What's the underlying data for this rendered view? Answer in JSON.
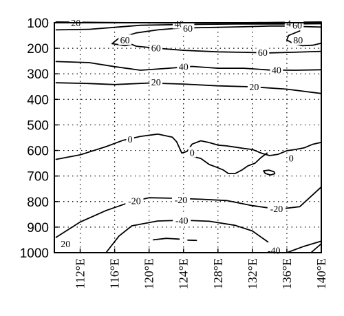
{
  "chart_data": {
    "type": "contour",
    "title": "",
    "xlabel": "",
    "ylabel": "",
    "x_ticks": [
      "112°E",
      "116°E",
      "120°E",
      "124°E",
      "128°E",
      "132°E",
      "136°E",
      "140°E"
    ],
    "y_ticks": [
      "100",
      "200",
      "300",
      "400",
      "500",
      "600",
      "700",
      "800",
      "900",
      "1000"
    ],
    "xlim": [
      109,
      140
    ],
    "ylim": [
      1000,
      100
    ],
    "grid": true,
    "contour_levels": [
      -40,
      -20,
      0,
      20,
      40,
      60,
      80
    ],
    "contours": [
      {
        "level": "20",
        "label_at": [
          111.5,
          100
        ],
        "points": [
          [
            109.2,
            97
          ],
          [
            115,
            99
          ],
          [
            122,
            101
          ],
          [
            128,
            101
          ],
          [
            134,
            99
          ],
          [
            140,
            97
          ]
        ]
      },
      {
        "level": "40",
        "label_at": [
          123.5,
          104
        ],
        "points": [
          [
            109.2,
            128
          ],
          [
            113,
            126
          ],
          [
            116,
            118
          ],
          [
            119,
            110
          ],
          [
            124,
            107
          ],
          [
            130,
            105
          ],
          [
            136,
            105
          ],
          [
            140,
            104
          ]
        ]
      },
      {
        "level": "40",
        "label_at": [
          136.5,
          101
        ]
      },
      {
        "level": "60",
        "label_at": [
          117.2,
          168
        ],
        "points": [
          [
            123.5,
            121
          ],
          [
            121,
            128
          ],
          [
            118.5,
            140
          ],
          [
            116.5,
            160
          ],
          [
            115.7,
            182
          ],
          [
            117.2,
            190
          ],
          [
            118,
            185
          ],
          [
            118.5,
            192
          ],
          [
            121,
            200
          ],
          [
            124,
            208
          ],
          [
            128,
            214
          ],
          [
            131,
            216
          ],
          [
            134,
            218
          ],
          [
            136.5,
            216
          ],
          [
            140,
            212
          ]
        ]
      },
      {
        "level": "60",
        "label_at": [
          124.5,
          121
        ],
        "points": [
          [
            125,
            120
          ],
          [
            128,
            118
          ],
          [
            131,
            116
          ],
          [
            134,
            113
          ],
          [
            136.5,
            113
          ],
          [
            138,
            115
          ],
          [
            140,
            117
          ]
        ]
      },
      {
        "level": "60",
        "label_at": [
          120.8,
          199
        ]
      },
      {
        "level": "60",
        "label_at": [
          133.2,
          216
        ]
      },
      {
        "level": "60",
        "label_at": [
          137.2,
          110
        ]
      },
      {
        "level": "80",
        "label_at": [
          137.3,
          168
        ],
        "points": [
          [
            137.5,
            132
          ],
          [
            136.2,
            150
          ],
          [
            136,
            168
          ],
          [
            136.8,
            182
          ],
          [
            137.8,
            190
          ],
          [
            139,
            188
          ],
          [
            140,
            180
          ]
        ]
      },
      {
        "level": "40",
        "label_at": [
          124,
          271
        ],
        "points": [
          [
            109.2,
            252
          ],
          [
            113,
            256
          ],
          [
            116,
            272
          ],
          [
            119,
            286
          ],
          [
            122,
            279
          ],
          [
            125,
            271
          ],
          [
            128,
            278
          ],
          [
            131,
            278
          ],
          [
            134,
            285
          ],
          [
            137,
            286
          ],
          [
            140,
            284
          ]
        ]
      },
      {
        "level": "40",
        "label_at": [
          134.8,
          285
        ]
      },
      {
        "level": "20",
        "label_at": [
          120.8,
          332
        ],
        "points": [
          [
            109.2,
            335
          ],
          [
            113,
            338
          ],
          [
            116,
            342
          ],
          [
            120,
            336
          ],
          [
            124,
            340
          ],
          [
            128,
            347
          ],
          [
            132,
            351
          ],
          [
            136,
            360
          ],
          [
            140,
            377
          ]
        ]
      },
      {
        "level": "20",
        "label_at": [
          132.2,
          351
        ]
      },
      {
        "level": "0",
        "label_at": [
          117.8,
          556
        ],
        "points": [
          [
            109.2,
            635
          ],
          [
            112,
            617
          ],
          [
            115,
            585
          ],
          [
            117,
            560
          ],
          [
            119,
            545
          ],
          [
            121,
            536
          ],
          [
            122.7,
            548
          ],
          [
            123.2,
            566
          ],
          [
            123.8,
            610
          ],
          [
            124.4,
            604
          ],
          [
            125,
            575
          ],
          [
            126,
            562
          ],
          [
            127,
            569
          ],
          [
            128,
            579
          ],
          [
            129,
            582
          ],
          [
            130,
            587
          ],
          [
            131,
            592
          ],
          [
            132,
            596
          ],
          [
            133,
            610
          ],
          [
            134,
            620
          ],
          [
            135,
            615
          ],
          [
            136,
            601
          ],
          [
            137,
            596
          ],
          [
            138,
            590
          ],
          [
            139,
            576
          ],
          [
            140,
            568
          ]
        ]
      },
      {
        "level": "0",
        "label_at": [
          125,
          608
        ]
      },
      {
        "level": "0",
        "label_at": [
          136.5,
          630
        ]
      },
      {
        "level": "",
        "label_at": [
          0,
          0
        ],
        "points": [
          [
            125.2,
            625
          ],
          [
            126,
            631
          ],
          [
            127,
            655
          ],
          [
            127.8,
            665
          ],
          [
            128.6,
            676
          ],
          [
            129.2,
            690
          ],
          [
            130,
            690
          ],
          [
            130.8,
            676
          ],
          [
            131.5,
            660
          ],
          [
            132.3,
            650
          ],
          [
            133,
            628
          ],
          [
            133.7,
            610
          ]
        ]
      },
      {
        "level": "",
        "label_at": [
          0,
          0
        ],
        "points": [
          [
            133.3,
            680
          ],
          [
            133.9,
            677
          ],
          [
            134.5,
            683
          ],
          [
            134.6,
            691
          ],
          [
            134.1,
            696
          ],
          [
            133.5,
            690
          ],
          [
            133.3,
            680
          ]
        ]
      },
      {
        "level": "-20",
        "label_at": [
          123.7,
          792
        ],
        "points": [
          [
            109.2,
            940
          ],
          [
            112,
            880
          ],
          [
            115,
            835
          ],
          [
            118,
            800
          ],
          [
            120,
            785
          ],
          [
            123,
            787
          ],
          [
            126,
            791
          ],
          [
            129,
            796
          ],
          [
            132,
            816
          ],
          [
            135,
            830
          ],
          [
            137.5,
            820
          ],
          [
            140,
            743
          ]
        ]
      },
      {
        "level": "-20",
        "label_at": [
          118.3,
          796
        ]
      },
      {
        "level": "-20",
        "label_at": [
          134.8,
          827
        ]
      },
      {
        "level": "20",
        "label_at": [
          110.3,
          965
        ]
      },
      {
        "level": "-40",
        "label_at": [
          123.8,
          873
        ],
        "points": [
          [
            115,
            1000
          ],
          [
            116.5,
            935
          ],
          [
            118,
            895
          ],
          [
            121,
            876
          ],
          [
            124,
            873
          ],
          [
            127,
            877
          ],
          [
            130,
            893
          ],
          [
            132,
            915
          ],
          [
            133.8,
            958
          ]
        ]
      },
      {
        "level": "",
        "label_at": [
          0,
          0
        ],
        "points": [
          [
            120.5,
            950
          ],
          [
            122,
            944
          ],
          [
            123.5,
            947
          ]
        ]
      },
      {
        "level": "",
        "label_at": [
          0,
          0
        ],
        "points": [
          [
            124.5,
            951
          ],
          [
            125.5,
            952
          ]
        ]
      },
      {
        "level": "-40",
        "label_at": [
          134.5,
          990
        ],
        "points": [
          [
            136,
            1000
          ],
          [
            138,
            975
          ],
          [
            140,
            955
          ]
        ]
      },
      {
        "level": "",
        "label_at": [
          0,
          0
        ],
        "points": [
          [
            138.8,
            1000
          ],
          [
            140,
            965
          ]
        ]
      }
    ]
  }
}
